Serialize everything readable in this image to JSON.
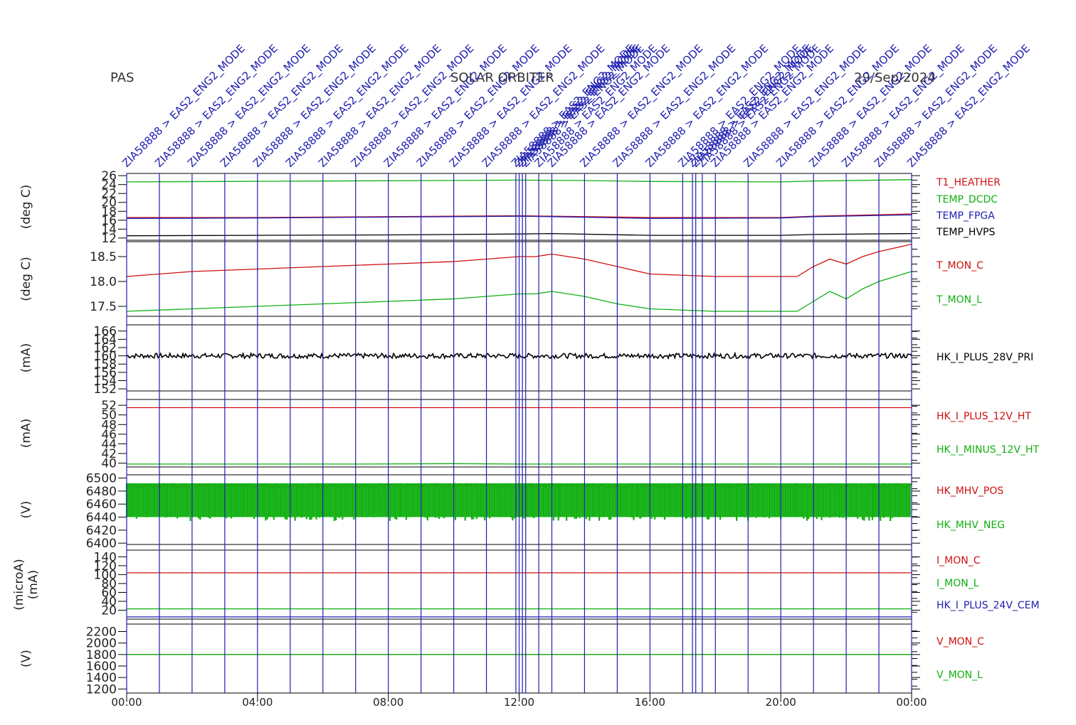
{
  "header": {
    "instrument": "PAS",
    "mission": "SOLAR ORBITER",
    "date": "29/Sep/2024"
  },
  "x_axis": {
    "ticks": [
      "00:00",
      "04:00",
      "08:00",
      "12:00",
      "16:00",
      "20:00",
      "00:00"
    ]
  },
  "events": {
    "label": "ZIA58888 > EAS2_ENG2_MODE",
    "hours": [
      0,
      1,
      2,
      3,
      4,
      5,
      6,
      7,
      8,
      9,
      10,
      11,
      11.9,
      12.0,
      12.1,
      12.2,
      12.6,
      13,
      14,
      15,
      16,
      17,
      17.3,
      17.4,
      17.6,
      18,
      19,
      20,
      21,
      22,
      23,
      24
    ]
  },
  "colors": {
    "red": "#d01010",
    "green": "#10b010",
    "blue": "#2020b0",
    "black": "#000000",
    "purple": "#7a00a0"
  },
  "chart_data": [
    {
      "type": "line",
      "ylabel": "(deg C)",
      "yticks": [
        "12",
        "14",
        "16",
        "18",
        "20",
        "22",
        "24",
        "26"
      ],
      "ylim": [
        11.5,
        26.5
      ],
      "series": [
        {
          "name": "T1_HEATHER",
          "color": "red",
          "x": [
            0,
            4,
            8,
            12,
            13,
            16,
            20,
            21,
            24
          ],
          "y": [
            16.6,
            16.6,
            16.8,
            17.0,
            16.9,
            16.6,
            16.6,
            16.9,
            17.4
          ]
        },
        {
          "name": "TEMP_DCDC",
          "color": "green",
          "x": [
            0,
            3,
            6,
            12,
            14,
            16,
            20,
            21,
            24
          ],
          "y": [
            24.6,
            24.7,
            24.8,
            25.0,
            24.9,
            24.7,
            24.6,
            24.8,
            25.1
          ]
        },
        {
          "name": "TEMP_FPGA",
          "color": "blue",
          "x": [
            0,
            4,
            8,
            12,
            13,
            16,
            20,
            21,
            24
          ],
          "y": [
            16.4,
            16.5,
            16.7,
            16.9,
            16.8,
            16.4,
            16.5,
            16.8,
            17.2
          ]
        },
        {
          "name": "TEMP_HVPS",
          "color": "black",
          "x": [
            0,
            4,
            8,
            12,
            13,
            16,
            20,
            21,
            24
          ],
          "y": [
            12.5,
            12.6,
            12.7,
            12.9,
            13.0,
            12.6,
            12.6,
            12.8,
            13.0
          ]
        }
      ]
    },
    {
      "type": "line",
      "ylabel": "(deg C)",
      "yticks": [
        "17.5",
        "18.0",
        "18.5"
      ],
      "ylim": [
        17.3,
        18.8
      ],
      "series": [
        {
          "name": "T_MON_C",
          "color": "red",
          "x": [
            0,
            2,
            4,
            6,
            8,
            10,
            11,
            12,
            12.5,
            13,
            14,
            15,
            16,
            18,
            20,
            20.5,
            21,
            21.5,
            22,
            22.5,
            23,
            24
          ],
          "y": [
            18.1,
            18.2,
            18.25,
            18.3,
            18.35,
            18.4,
            18.45,
            18.5,
            18.5,
            18.55,
            18.45,
            18.3,
            18.15,
            18.1,
            18.1,
            18.1,
            18.3,
            18.45,
            18.35,
            18.5,
            18.6,
            18.75
          ]
        },
        {
          "name": "T_MON_L",
          "color": "green",
          "x": [
            0,
            2,
            4,
            6,
            8,
            10,
            11,
            12,
            12.5,
            13,
            14,
            15,
            16,
            18,
            20,
            20.5,
            21,
            21.5,
            22,
            22.5,
            23,
            24
          ],
          "y": [
            17.4,
            17.45,
            17.5,
            17.55,
            17.6,
            17.65,
            17.7,
            17.75,
            17.75,
            17.8,
            17.7,
            17.55,
            17.45,
            17.4,
            17.4,
            17.4,
            17.6,
            17.8,
            17.65,
            17.85,
            18.0,
            18.2
          ]
        }
      ]
    },
    {
      "type": "line",
      "ylabel": "(mA)",
      "yticks": [
        "152",
        "154",
        "156",
        "158",
        "160",
        "162",
        "164",
        "166"
      ],
      "ylim": [
        151.5,
        167.5
      ],
      "series": [
        {
          "name": "HK_I_PLUS_28V_PRI",
          "color": "black",
          "x": [
            0,
            24
          ],
          "y": [
            160,
            160
          ],
          "noise": 0.6
        }
      ]
    },
    {
      "type": "line",
      "ylabel": "(mA)",
      "yticks": [
        "40",
        "42",
        "44",
        "46",
        "48",
        "50",
        "52"
      ],
      "ylim": [
        39.2,
        53.2
      ],
      "series": [
        {
          "name": "HK_I_PLUS_12V_HT",
          "color": "red",
          "x": [
            0,
            24
          ],
          "y": [
            51.5,
            51.5
          ]
        },
        {
          "name": "HK_I_MINUS_12V_HT",
          "color": "green",
          "x": [
            0,
            7,
            10,
            12,
            24
          ],
          "y": [
            39.8,
            39.8,
            39.9,
            39.8,
            39.8
          ]
        }
      ]
    },
    {
      "type": "line",
      "ylabel": "(V)",
      "yticks": [
        "6400",
        "6420",
        "6440",
        "6460",
        "6480",
        "6500"
      ],
      "ylim": [
        6398,
        6505
      ],
      "series": [
        {
          "name": "HK_MHV_POS",
          "color": "red",
          "x": [
            0,
            24
          ],
          "y": [
            6488,
            6488
          ],
          "noise": 3
        },
        {
          "name": "HK_MHV_NEG",
          "color": "green",
          "x": [
            0,
            24
          ],
          "y": [
            6465,
            6465
          ],
          "band": [
            6440,
            6492
          ]
        }
      ]
    },
    {
      "type": "line",
      "ylabel": "(microA)\n(mA)",
      "yticks": [
        "20",
        "40",
        "60",
        "80",
        "100",
        "120",
        "140"
      ],
      "ylim": [
        0,
        155
      ],
      "series": [
        {
          "name": "I_MON_C",
          "color": "red",
          "x": [
            0,
            24
          ],
          "y": [
            104,
            104
          ]
        },
        {
          "name": "I_MON_L",
          "color": "green",
          "x": [
            0,
            24
          ],
          "y": [
            23,
            23
          ]
        },
        {
          "name": "HK_I_PLUS_24V_CEM",
          "color": "blue",
          "x": [
            0,
            24
          ],
          "y": [
            5,
            5
          ]
        }
      ]
    },
    {
      "type": "line",
      "ylabel": "(V)",
      "yticks": [
        "1200",
        "1400",
        "1600",
        "1800",
        "2000",
        "2200"
      ],
      "ylim": [
        1130,
        2330
      ],
      "series": [
        {
          "name": "V_MON_C",
          "color": "red",
          "x": [
            0,
            24
          ],
          "y": [
            1800,
            1800
          ]
        },
        {
          "name": "V_MON_L",
          "color": "green",
          "x": [
            0,
            24
          ],
          "y": [
            1800,
            1800
          ]
        }
      ]
    }
  ]
}
